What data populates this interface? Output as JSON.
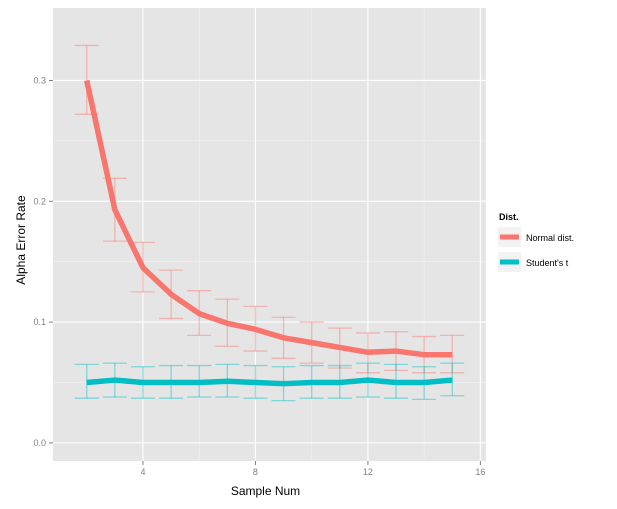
{
  "chart_data": {
    "type": "line",
    "xlabel": "Sample Num",
    "ylabel": "Alpha Error Rate",
    "xlim": [
      0.8,
      16.2
    ],
    "ylim": [
      -0.015,
      0.36
    ],
    "x_ticks": [
      4,
      8,
      12,
      16
    ],
    "y_ticks": [
      0.0,
      0.1,
      0.2,
      0.3
    ],
    "x_tick_labels": [
      "4",
      "8",
      "12",
      "16"
    ],
    "y_tick_labels": [
      "0.0",
      "0.1",
      "0.2",
      "0.3"
    ],
    "grid": true,
    "error_bars": true,
    "legend": {
      "title": "Dist.",
      "placement": "right"
    },
    "x": [
      2,
      3,
      4,
      5,
      6,
      7,
      8,
      9,
      10,
      11,
      12,
      13,
      14,
      15
    ],
    "series": [
      {
        "name": "Normal dist.",
        "color": "#F8766D",
        "values": [
          0.3,
          0.193,
          0.145,
          0.123,
          0.107,
          0.099,
          0.094,
          0.087,
          0.083,
          0.079,
          0.075,
          0.076,
          0.073,
          0.073
        ],
        "lower": [
          0.272,
          0.167,
          0.125,
          0.103,
          0.089,
          0.08,
          0.076,
          0.07,
          0.066,
          0.062,
          0.058,
          0.06,
          0.058,
          0.058
        ],
        "upper": [
          0.329,
          0.219,
          0.166,
          0.143,
          0.126,
          0.119,
          0.113,
          0.104,
          0.1,
          0.095,
          0.091,
          0.092,
          0.088,
          0.089
        ]
      },
      {
        "name": "Student's t",
        "color": "#00BFC4",
        "values": [
          0.05,
          0.052,
          0.05,
          0.05,
          0.05,
          0.051,
          0.05,
          0.049,
          0.05,
          0.05,
          0.052,
          0.05,
          0.05,
          0.052
        ],
        "lower": [
          0.037,
          0.038,
          0.037,
          0.037,
          0.038,
          0.038,
          0.037,
          0.035,
          0.037,
          0.037,
          0.038,
          0.037,
          0.036,
          0.039
        ],
        "upper": [
          0.065,
          0.066,
          0.063,
          0.064,
          0.064,
          0.065,
          0.064,
          0.063,
          0.064,
          0.064,
          0.066,
          0.065,
          0.063,
          0.066
        ]
      }
    ]
  }
}
